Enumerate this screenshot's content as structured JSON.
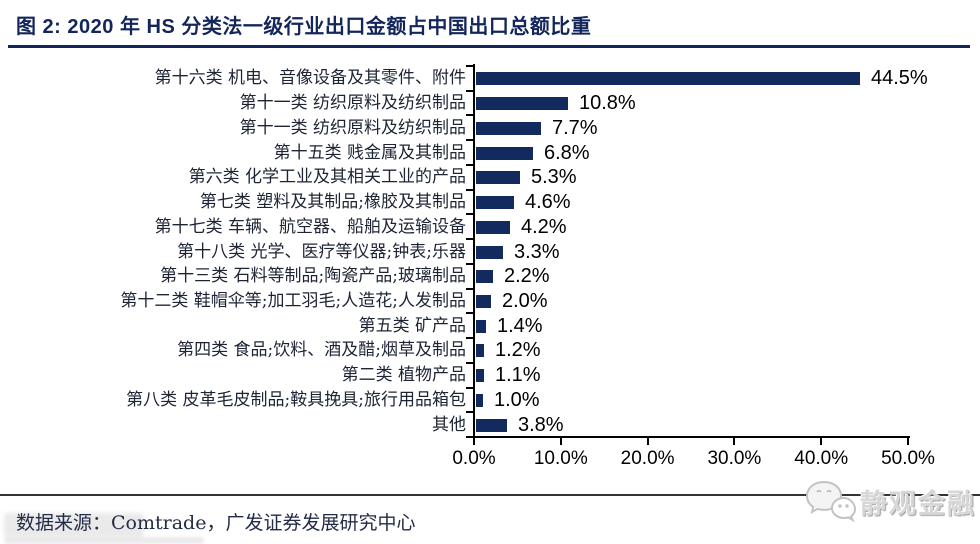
{
  "header": {
    "title": "图 2:  2020 年 HS 分类法一级行业出口金额占中国出口总额比重"
  },
  "chart_data": {
    "type": "bar",
    "orientation": "horizontal",
    "title": "2020 年 HS 分类法一级行业出口金额占中国出口总额比重",
    "categories": [
      "第十六类 机电、音像设备及其零件、附件",
      "第十一类 纺织原料及纺织制品",
      "第十一类 纺织原料及纺织制品",
      "第十五类 贱金属及其制品",
      "第六类 化学工业及其相关工业的产品",
      "第七类 塑料及其制品;橡胶及其制品",
      "第十七类 车辆、航空器、船舶及运输设备",
      "第十八类 光学、医疗等仪器;钟表;乐器",
      "第十三类 石料等制品;陶瓷产品;玻璃制品",
      "第十二类 鞋帽伞等;加工羽毛;人造花;人发制品",
      "第五类 矿产品",
      "第四类 食品;饮料、酒及醋;烟草及制品",
      "第二类 植物产品",
      "第八类 皮革毛皮制品;鞍具挽具;旅行用品箱包",
      "其他"
    ],
    "values": [
      44.5,
      10.8,
      7.7,
      6.8,
      5.3,
      4.6,
      4.2,
      3.3,
      2.2,
      2.0,
      1.4,
      1.2,
      1.1,
      1.0,
      3.8
    ],
    "value_labels": [
      "44.5%",
      "10.8%",
      "7.7%",
      "6.8%",
      "5.3%",
      "4.6%",
      "4.2%",
      "3.3%",
      "2.2%",
      "2.0%",
      "1.4%",
      "1.2%",
      "1.1%",
      "1.0%",
      "3.8%"
    ],
    "x_ticks": [
      "0.0%",
      "10.0%",
      "20.0%",
      "30.0%",
      "40.0%",
      "50.0%"
    ],
    "xlim": [
      0,
      50
    ],
    "grid": false,
    "legend": "none",
    "bar_color": "#132a5e"
  },
  "footer": {
    "source": "数据来源：Comtrade，广发证券发展研究中心",
    "logo_text": "静观金融"
  },
  "colors": {
    "bar": "#132a5e",
    "title": "#13265b",
    "axis": "#000000",
    "value_label": "#000000",
    "source_text": "#222c46",
    "logo_gray": "#d7d7d7"
  }
}
